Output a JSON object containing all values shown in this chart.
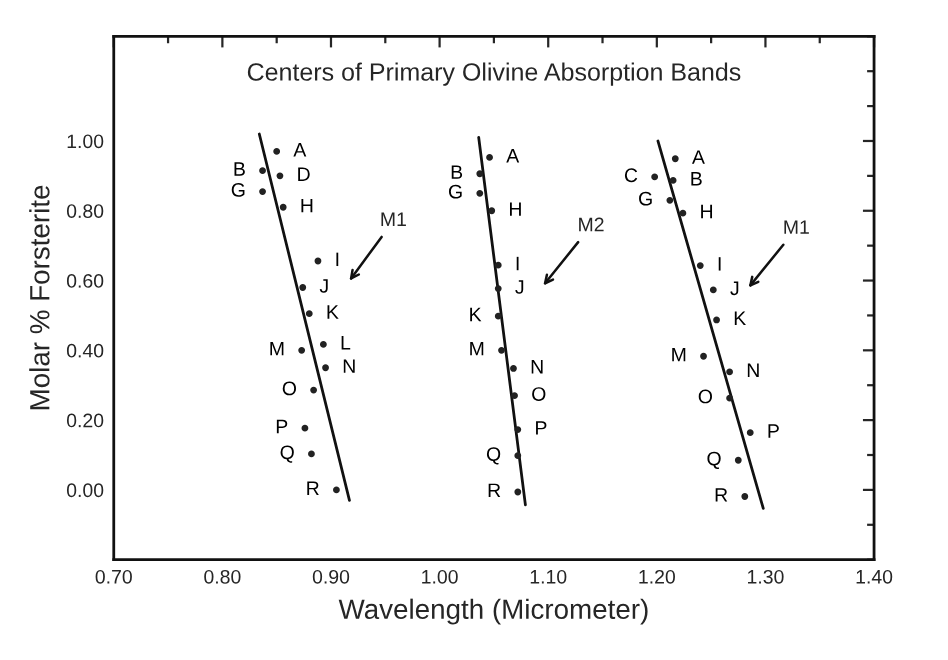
{
  "chart_data": {
    "type": "scatter",
    "title": "Centers of Primary Olivine Absorption Bands",
    "xlabel": "Wavelength (Micrometer)",
    "ylabel": "Molar % Forsterite",
    "xlim": [
      0.7,
      1.4
    ],
    "ylim": [
      -0.2,
      1.3
    ],
    "xticks": [
      {
        "value": 0.7,
        "label": "0.70"
      },
      {
        "value": 0.8,
        "label": "0.80"
      },
      {
        "value": 0.9,
        "label": "0.90"
      },
      {
        "value": 1.0,
        "label": "1.00"
      },
      {
        "value": 1.1,
        "label": "1.10"
      },
      {
        "value": 1.2,
        "label": "1.20"
      },
      {
        "value": 1.3,
        "label": "1.30"
      },
      {
        "value": 1.4,
        "label": "1.40"
      }
    ],
    "yticks": [
      {
        "value": 0.0,
        "label": "0.00"
      },
      {
        "value": 0.2,
        "label": "0.20"
      },
      {
        "value": 0.4,
        "label": "0.40"
      },
      {
        "value": 0.6,
        "label": "0.60"
      },
      {
        "value": 0.8,
        "label": "0.80"
      },
      {
        "value": 1.0,
        "label": "1.00"
      }
    ],
    "grid": false,
    "legend": false,
    "series": [
      {
        "marker": "circle",
        "color": "#222222",
        "x": [
          0.85,
          0.837,
          0.853,
          0.837,
          0.856,
          0.888,
          0.874,
          0.88,
          0.873,
          0.893,
          0.895,
          0.884,
          0.876,
          0.882,
          0.905
        ],
        "values": [
          0.97,
          0.915,
          0.9,
          0.855,
          0.81,
          0.656,
          0.58,
          0.505,
          0.4,
          0.417,
          0.35,
          0.286,
          0.177,
          0.103,
          0.0
        ],
        "value_labels": [
          "A",
          "B",
          "D",
          "G",
          "H",
          "I",
          "J",
          "K",
          "M",
          "L",
          "N",
          "O",
          "P",
          "Q",
          "R"
        ]
      },
      {
        "marker": "circle",
        "color": "#222222",
        "x": [
          1.046,
          1.037,
          1.037,
          1.048,
          1.054,
          1.054,
          1.054,
          1.057,
          1.068,
          1.069,
          1.072,
          1.072,
          1.072
        ],
        "values": [
          0.953,
          0.906,
          0.85,
          0.8,
          0.644,
          0.577,
          0.498,
          0.4,
          0.348,
          0.27,
          0.173,
          0.098,
          -0.006
        ],
        "value_labels": [
          "A",
          "B",
          "G",
          "H",
          "I",
          "J",
          "K",
          "M",
          "N",
          "O",
          "P",
          "Q",
          "R"
        ]
      },
      {
        "marker": "circle",
        "color": "#222222",
        "x": [
          1.217,
          1.198,
          1.215,
          1.212,
          1.224,
          1.24,
          1.252,
          1.255,
          1.243,
          1.267,
          1.267,
          1.286,
          1.275,
          1.281
        ],
        "values": [
          0.949,
          0.897,
          0.887,
          0.83,
          0.793,
          0.643,
          0.573,
          0.487,
          0.383,
          0.338,
          0.263,
          0.164,
          0.085,
          -0.019
        ],
        "value_labels": [
          "A",
          "C",
          "B",
          "G",
          "H",
          "I",
          "J",
          "K",
          "M",
          "N",
          "O",
          "P",
          "Q",
          "R"
        ]
      },
      {
        "type": "line",
        "color": "#111111",
        "x": [
          0.834,
          0.917
        ],
        "values": [
          1.02,
          -0.03
        ]
      },
      {
        "type": "line",
        "color": "#111111",
        "x": [
          1.036,
          1.079
        ],
        "values": [
          1.01,
          -0.043
        ]
      },
      {
        "type": "line",
        "color": "#111111",
        "x": [
          1.201,
          1.298
        ],
        "values": [
          1.0,
          -0.053
        ]
      }
    ],
    "annotations": [
      "M1",
      "M2",
      "M1"
    ]
  }
}
